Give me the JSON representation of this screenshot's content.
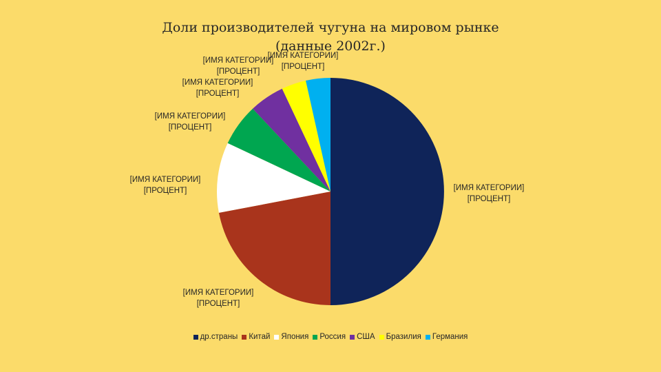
{
  "chart_data": {
    "type": "pie",
    "title_lines": [
      "Доли производителей чугуна на мировом рынке",
      "(данные 2002г.)"
    ],
    "series": [
      {
        "name": "др.страны",
        "value": 50,
        "color": "#0F2459",
        "label_line1": "[ИМЯ КАТЕГОРИИ]",
        "label_line2": "[ПРОЦЕНТ]"
      },
      {
        "name": "Китай",
        "value": 22,
        "color": "#A9341C",
        "label_line1": "[ИМЯ КАТЕГОРИИ]",
        "label_line2": "[ПРОЦЕНТ]"
      },
      {
        "name": "Япония",
        "value": 10,
        "color": "#FFFFFF",
        "label_line1": "[ИМЯ КАТЕГОРИИ]",
        "label_line2": "[ПРОЦЕНТ]"
      },
      {
        "name": "Россия",
        "value": 6,
        "color": "#00A650",
        "label_line1": "[ИМЯ КАТЕГОРИИ]",
        "label_line2": "[ПРОЦЕНТ]"
      },
      {
        "name": "США",
        "value": 5,
        "color": "#7030A0",
        "label_line1": "[ИМЯ КАТЕГОРИИ]",
        "label_line2": "[ПРОЦЕНТ]"
      },
      {
        "name": "Бразилия",
        "value": 3.5,
        "color": "#FFFF00",
        "label_line1": "[ИМЯ КАТЕГОРИИ]",
        "label_line2": "[ПРОЦЕНТ]"
      },
      {
        "name": "Германия",
        "value": 3.5,
        "color": "#00B0F0",
        "label_line1": "[ИМЯ КАТЕГОРИИ]",
        "label_line2": "[ПРОЦЕНТ]"
      }
    ],
    "legend_position": "bottom"
  }
}
